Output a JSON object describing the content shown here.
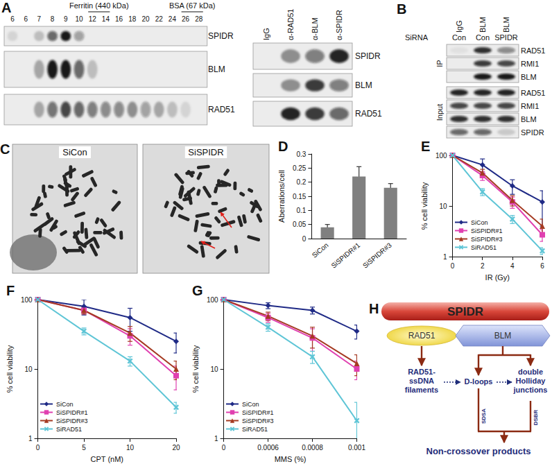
{
  "figure": {
    "A": {
      "label": "A",
      "fractionation": {
        "lanes": [
          "6",
          "6",
          "7",
          "8",
          "9",
          "10",
          "12",
          "14",
          "16",
          "18",
          "20",
          "22",
          "24",
          "26",
          "28"
        ],
        "markers": [
          {
            "text": "Ferritin (440 kDa)",
            "lanes": [
              6,
              7
            ]
          },
          {
            "text": "BSA (67 kDa)",
            "lanes": [
              13,
              14
            ]
          }
        ],
        "rows": [
          {
            "name": "SPIDR",
            "bands": [
              0.1,
              0,
              0.2,
              0.6,
              0.95,
              0.35,
              0,
              0,
              0,
              0,
              0,
              0,
              0,
              0,
              0
            ]
          },
          {
            "name": "BLM",
            "bands": [
              0,
              0,
              0.3,
              0.95,
              0.95,
              0.6,
              0.2,
              0,
              0,
              0,
              0,
              0,
              0,
              0,
              0
            ]
          },
          {
            "name": "RAD51",
            "bands": [
              0,
              0,
              0.3,
              0.55,
              0.75,
              0.6,
              0.5,
              0.45,
              0.45,
              0.4,
              0.35,
              0.3,
              0.2,
              0.1,
              0
            ]
          }
        ]
      },
      "ip": {
        "lanes": [
          "IgG",
          "α-RAD51",
          "α-BLM",
          "α-SPIDR"
        ],
        "rows": [
          {
            "name": "SPIDR",
            "bands": [
              0,
              0.4,
              0.5,
              0.9
            ]
          },
          {
            "name": "BLM",
            "bands": [
              0,
              0.4,
              0.8,
              0.5
            ]
          },
          {
            "name": "RAD51",
            "bands": [
              0,
              0.9,
              0.8,
              0.6
            ]
          }
        ]
      }
    },
    "B": {
      "label": "B",
      "sirna_label": "SiRNA",
      "sirna": [
        "Con",
        "Con",
        "SPIDR"
      ],
      "lanes": [
        "IgG",
        "BLM",
        "BLM"
      ],
      "groups": [
        {
          "name": "IP",
          "rows": [
            {
              "name": "RAD51",
              "bands": [
                0.05,
                0.85,
                0.45
              ]
            },
            {
              "name": "RMI1",
              "bands": [
                0,
                0.8,
                0.75
              ]
            },
            {
              "name": "BLM",
              "bands": [
                0,
                0.95,
                0.95
              ]
            }
          ]
        },
        {
          "name": "Input",
          "rows": [
            {
              "name": "RAD51",
              "bands": [
                0.9,
                0.9,
                0.9
              ]
            },
            {
              "name": "RMI1",
              "bands": [
                0.75,
                0.75,
                0.75
              ]
            },
            {
              "name": "BLM",
              "bands": [
                0.85,
                0.85,
                0.85
              ]
            },
            {
              "name": "SPIDR",
              "bands": [
                0.6,
                0.6,
                0.15
              ]
            }
          ]
        }
      ]
    },
    "C": {
      "label": "C",
      "images": [
        "SiCon",
        "SiSPIDR"
      ]
    },
    "H": {
      "label": "H",
      "scaffold": "SPIDR",
      "left_partner": "RAD51",
      "right_partner": "BLM",
      "filaments": [
        "RAD51-",
        "ssDNA",
        "filaments"
      ],
      "dloops": [
        "D-loops"
      ],
      "junctions": [
        "double",
        "Holliday",
        "junctions"
      ],
      "pathways": [
        "SDSA",
        "DSBR"
      ],
      "result": "Non-crossover products"
    }
  },
  "chart_data": [
    {
      "type": "bar",
      "title": "D",
      "categories": [
        "SiCon",
        "SiSPIDR#1",
        "SiSPIDR#3"
      ],
      "values": [
        0.04,
        0.22,
        0.18
      ],
      "errors": [
        0.01,
        0.035,
        0.015
      ],
      "color": "#808080",
      "ylabel": "Aberrations/cell",
      "ylim": [
        0,
        0.3
      ],
      "yticks": [
        0,
        0.05,
        0.1,
        0.15,
        0.2,
        0.25,
        0.3
      ],
      "grid": false
    },
    {
      "type": "line",
      "title": "E",
      "x": [
        0,
        2,
        4,
        6
      ],
      "xlim": [
        0,
        6
      ],
      "xticks": [
        0,
        2,
        4,
        6
      ],
      "xlabel": "IR (Gy)",
      "ylabel": "% cell viability",
      "ylim": [
        1,
        100
      ],
      "yticks": [
        1,
        10,
        100
      ],
      "log": "y",
      "grid": false,
      "legend": "lower left",
      "series": [
        {
          "name": "SiCon",
          "color": "#1f2a86",
          "marker": "diamond",
          "values": [
            100,
            65,
            25,
            12
          ],
          "errors": [
            0,
            20,
            8,
            8
          ]
        },
        {
          "name": "SiSPIDR#1",
          "color": "#e040b0",
          "marker": "square",
          "values": [
            100,
            40,
            12,
            2.7
          ],
          "errors": [
            0,
            8,
            3,
            0.7
          ]
        },
        {
          "name": "SiSPIDR#3",
          "color": "#a53a22",
          "marker": "triangle",
          "values": [
            100,
            45,
            13,
            4
          ],
          "errors": [
            0,
            8,
            3,
            1.5
          ]
        },
        {
          "name": "SiRAD51",
          "color": "#5ec5d6",
          "marker": "x",
          "values": [
            100,
            19,
            5.5,
            1.3
          ],
          "errors": [
            0,
            3,
            1,
            0.2
          ]
        }
      ]
    },
    {
      "type": "line",
      "title": "F",
      "categories": [
        "0",
        "5",
        "10",
        "20"
      ],
      "xlabel": "CPT (nM)",
      "ylabel": "% cell viability",
      "ylim": [
        1,
        100
      ],
      "yticks": [
        1,
        10,
        100
      ],
      "log": "y",
      "grid": false,
      "legend": "lower left",
      "series": [
        {
          "name": "SiCon",
          "color": "#1f2a86",
          "marker": "diamond",
          "values": [
            100,
            80,
            55,
            25
          ],
          "errors": [
            0,
            20,
            20,
            8
          ]
        },
        {
          "name": "SiSPIDR#1",
          "color": "#e040b0",
          "marker": "square",
          "values": [
            100,
            70,
            30,
            8
          ],
          "errors": [
            0,
            8,
            8,
            3
          ]
        },
        {
          "name": "SiSPIDR#3",
          "color": "#a53a22",
          "marker": "triangle",
          "values": [
            100,
            70,
            33,
            10
          ],
          "errors": [
            0,
            8,
            8,
            3
          ]
        },
        {
          "name": "SiRAD51",
          "color": "#5ec5d6",
          "marker": "x",
          "values": [
            100,
            35,
            13,
            2.8
          ],
          "errors": [
            0,
            4,
            2,
            0.5
          ]
        }
      ]
    },
    {
      "type": "line",
      "title": "G",
      "categories": [
        "0",
        "0.0006",
        "0.0008",
        "0.001"
      ],
      "xlabel": "MMS (%)",
      "ylabel": "% cell viability",
      "ylim": [
        1,
        100
      ],
      "yticks": [
        1,
        10,
        100
      ],
      "log": "y",
      "grid": false,
      "legend": "lower left",
      "series": [
        {
          "name": "SiCon",
          "color": "#1f2a86",
          "marker": "diamond",
          "values": [
            100,
            82,
            70,
            35
          ],
          "errors": [
            0,
            8,
            8,
            8
          ]
        },
        {
          "name": "SiSPIDR#1",
          "color": "#e040b0",
          "marker": "square",
          "values": [
            100,
            55,
            28,
            10
          ],
          "errors": [
            0,
            8,
            10,
            3
          ]
        },
        {
          "name": "SiSPIDR#3",
          "color": "#a53a22",
          "marker": "triangle",
          "values": [
            100,
            58,
            30,
            12
          ],
          "errors": [
            0,
            8,
            10,
            4
          ]
        },
        {
          "name": "SiRAD51",
          "color": "#5ec5d6",
          "marker": "x",
          "values": [
            100,
            40,
            15,
            1.8
          ],
          "errors": [
            0,
            5,
            3,
            1.5
          ]
        }
      ]
    }
  ]
}
